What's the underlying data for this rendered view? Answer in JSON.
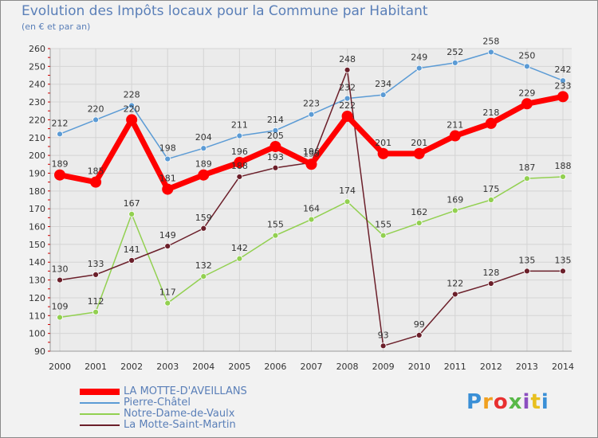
{
  "title": "Evolution des Impôts locaux pour la Commune par Habitant",
  "subtitle": "(en € et par an)",
  "logo": "Proxiti",
  "chart_data": {
    "type": "line",
    "title": "Evolution des Impôts locaux pour la Commune par Habitant",
    "ylabel": "(en € et par an)",
    "x": [
      "2000",
      "2001",
      "2002",
      "2003",
      "2004",
      "2005",
      "2006",
      "2007",
      "2008",
      "2009",
      "2010",
      "2011",
      "2012",
      "2013",
      "2014"
    ],
    "ylim": [
      90,
      260
    ],
    "yticks": [
      90,
      100,
      110,
      120,
      130,
      140,
      150,
      160,
      170,
      180,
      190,
      200,
      210,
      220,
      230,
      240,
      250,
      260
    ],
    "grid": true,
    "legend_position": "bottom-left",
    "series": [
      {
        "name": "LA MOTTE-D'AVEILLANS",
        "color": "#ff0000",
        "values": [
          189,
          185,
          220,
          181,
          189,
          196,
          205,
          195,
          222,
          201,
          201,
          211,
          218,
          229,
          233
        ]
      },
      {
        "name": "Pierre-Châtel",
        "color": "#5b9bd5",
        "values": [
          212,
          220,
          228,
          198,
          204,
          211,
          214,
          223,
          232,
          234,
          249,
          252,
          258,
          250,
          242
        ]
      },
      {
        "name": "Notre-Dame-de-Vaulx",
        "color": "#92d050",
        "values": [
          109,
          112,
          167,
          117,
          132,
          142,
          155,
          164,
          174,
          155,
          162,
          169,
          175,
          187,
          188
        ]
      },
      {
        "name": "La Motte-Saint-Martin",
        "color": "#6b1f2a",
        "values": [
          130,
          133,
          141,
          149,
          159,
          188,
          193,
          196,
          248,
          93,
          99,
          122,
          128,
          135,
          135
        ]
      }
    ]
  }
}
